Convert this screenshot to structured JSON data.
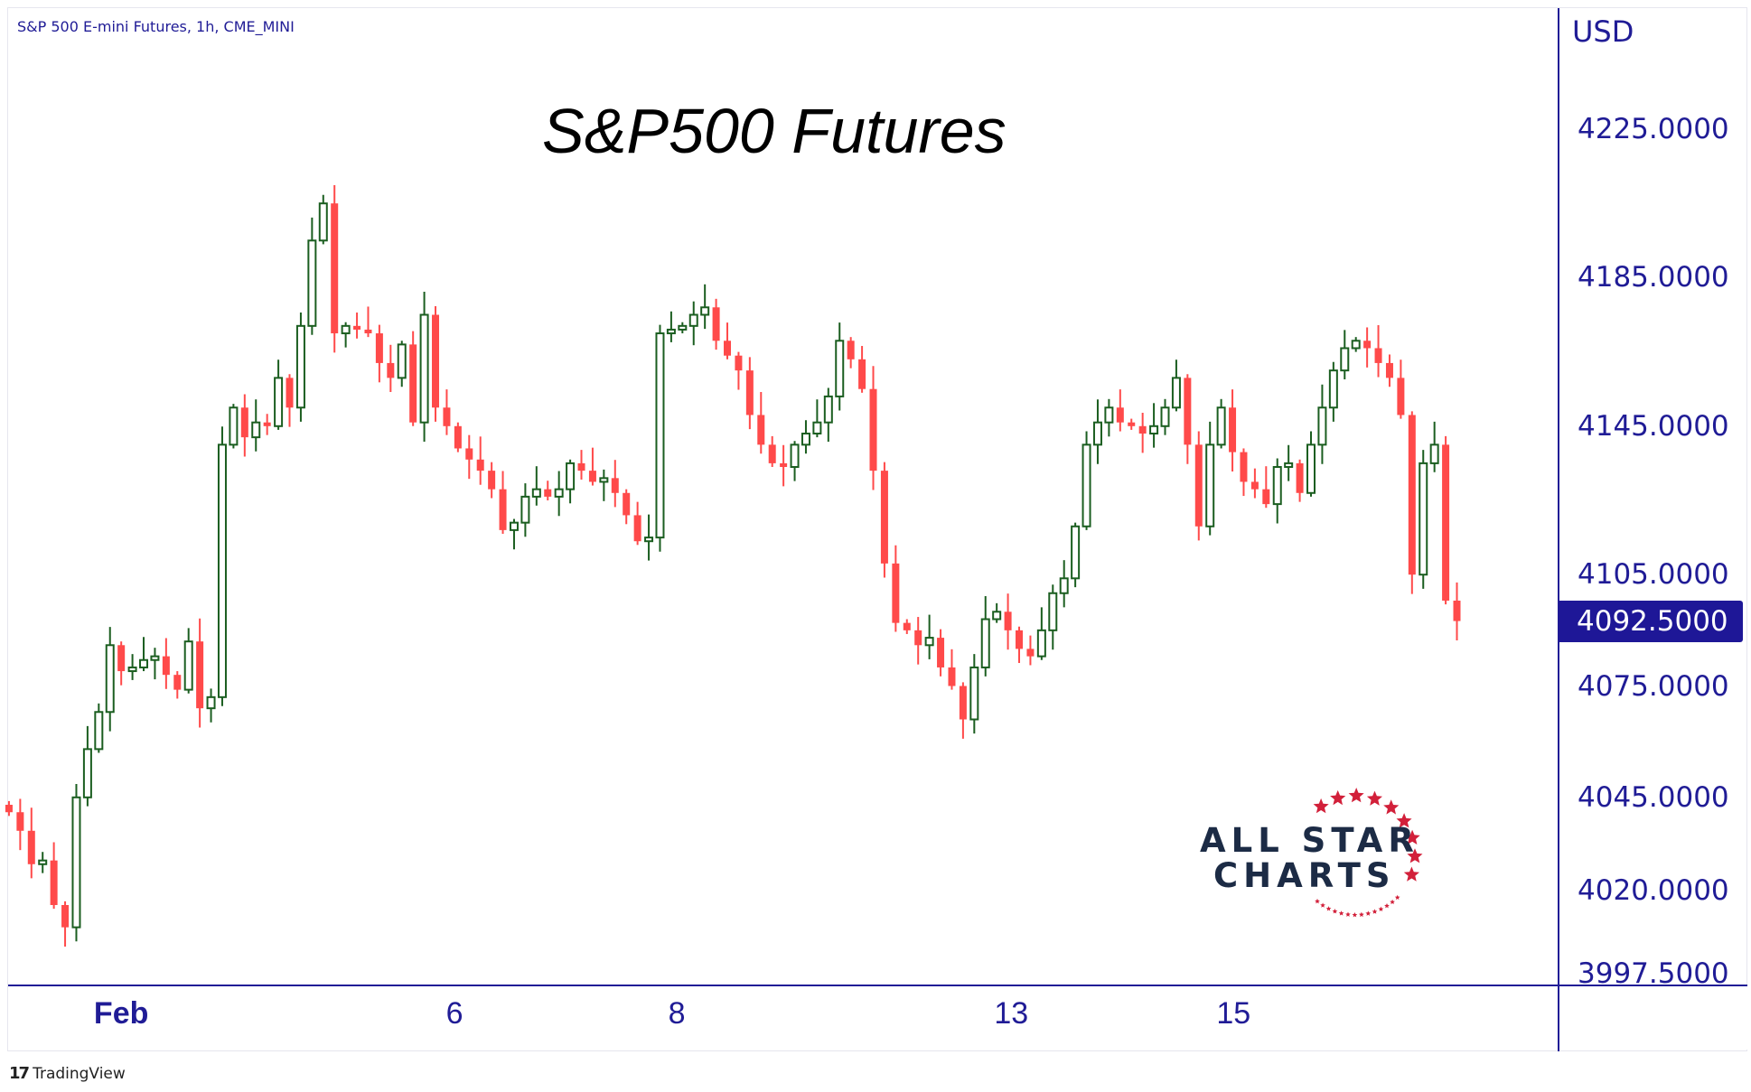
{
  "legend": "S&P 500 E-mini Futures, 1h, CME_MINI",
  "footer": {
    "brand": "TradingView",
    "logo_glyph": "17"
  },
  "watermark": {
    "line1": "ALL STAR",
    "line2": "CHARTS"
  },
  "colors": {
    "up": "#1b5e20",
    "down": "#ff4a4a",
    "axis": "#201c96",
    "badge": "#1e1797",
    "star": "#d2203a"
  },
  "chart_data": {
    "type": "candlestick",
    "title": "S&P500 Futures",
    "currency": "USD",
    "ylim": [
      3997.5,
      4245
    ],
    "y_ticks": [
      "4225.0000",
      "4185.0000",
      "4145.0000",
      "4105.0000",
      "4075.0000",
      "4045.0000",
      "4020.0000",
      "3997.5000"
    ],
    "y_tick_values": [
      4225,
      4185,
      4145,
      4105,
      4075,
      4045,
      4020,
      3997.5
    ],
    "last_price": 4092.5,
    "last_price_label": "4092.5000",
    "x_ticks": [
      {
        "label": "Feb",
        "index": 10,
        "major": true
      },
      {
        "label": "6",
        "index": 39.7,
        "major": false
      },
      {
        "label": "8",
        "index": 59.5,
        "major": false
      },
      {
        "label": "13",
        "index": 89.3,
        "major": false
      },
      {
        "label": "15",
        "index": 109.1,
        "major": false
      }
    ],
    "open_first": 4043,
    "closes": [
      4041,
      4036,
      4027,
      4028,
      4016,
      4010,
      4045,
      4058,
      4068,
      4086,
      4079,
      4080,
      4082,
      4083,
      4078,
      4074,
      4087,
      4069,
      4072,
      4140,
      4150,
      4142,
      4146,
      4145,
      4158,
      4150,
      4172,
      4195,
      4205,
      4170,
      4172,
      4171,
      4170,
      4162,
      4158,
      4167,
      4146,
      4175,
      4150,
      4145,
      4139,
      4136,
      4133,
      4128,
      4117,
      4119,
      4126,
      4128,
      4126,
      4128,
      4135,
      4133,
      4130,
      4131,
      4127,
      4121,
      4114,
      4115,
      4170,
      4171,
      4172,
      4175,
      4177,
      4168,
      4164,
      4160,
      4148,
      4140,
      4135,
      4134,
      4140,
      4143,
      4146,
      4153,
      4168,
      4163,
      4155,
      4133,
      4108,
      4092,
      4090,
      4086,
      4088,
      4080,
      4075,
      4066,
      4080,
      4093,
      4095,
      4090,
      4085,
      4083,
      4090,
      4100,
      4104,
      4118,
      4140,
      4146,
      4150,
      4146,
      4145,
      4143,
      4145,
      4150,
      4158,
      4140,
      4118,
      4140,
      4150,
      4138,
      4130,
      4128,
      4124,
      4134,
      4135,
      4127,
      4140,
      4150,
      4160,
      4166,
      4168,
      4166,
      4162,
      4158,
      4148,
      4105,
      4135,
      4140,
      4098,
      4092.5
    ]
  }
}
